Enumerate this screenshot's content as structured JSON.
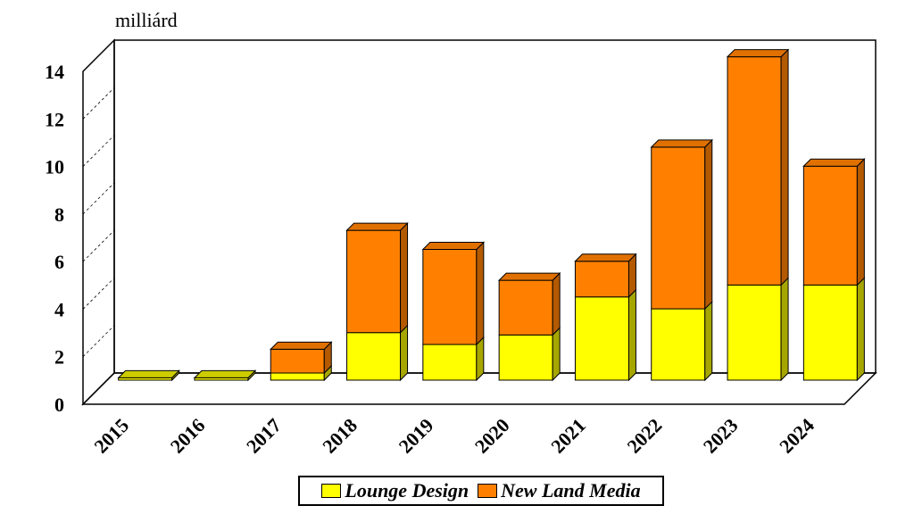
{
  "chart_data": {
    "type": "bar",
    "stacked": true,
    "unit_label": "milliárd",
    "categories": [
      "2015",
      "2016",
      "2017",
      "2018",
      "2019",
      "2020",
      "2021",
      "2022",
      "2023",
      "2024"
    ],
    "series": [
      {
        "name": "Lounge Design",
        "color": "#ffff00",
        "top_color": "#cccc00",
        "side_color": "#a6a600",
        "values": [
          0.1,
          0.1,
          0.3,
          2.0,
          1.5,
          1.9,
          3.5,
          3.0,
          4.0,
          4.0
        ]
      },
      {
        "name": "New Land Media",
        "color": "#ff8000",
        "top_color": "#e07000",
        "side_color": "#b35900",
        "values": [
          0.0,
          0.0,
          1.0,
          4.3,
          4.0,
          2.3,
          1.5,
          6.8,
          9.6,
          5.0
        ]
      }
    ],
    "ylim": [
      0,
      14
    ],
    "yticks": [
      0,
      2,
      4,
      6,
      8,
      10,
      12,
      14
    ],
    "grid": true,
    "legend_position": "bottom-center"
  }
}
